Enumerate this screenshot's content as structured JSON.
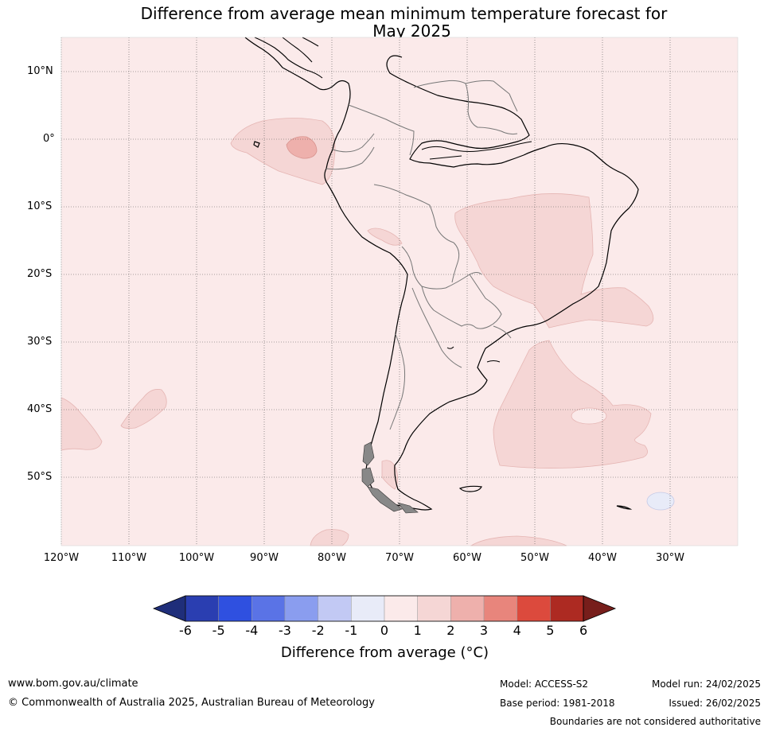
{
  "title": {
    "line1": "Difference from average mean minimum temperature forecast for",
    "line2": "May 2025"
  },
  "map": {
    "latitude_labels": [
      "10°N",
      "0°",
      "10°S",
      "20°S",
      "30°S",
      "40°S",
      "50°S"
    ],
    "longitude_labels": [
      "120°W",
      "110°W",
      "100°W",
      "90°W",
      "80°W",
      "70°W",
      "60°W",
      "50°W",
      "40°W",
      "30°W"
    ],
    "background_color": "#fbeaea",
    "colors": {
      "anomaly_1_2": "#f5d6d5",
      "anomaly_2_3": "#eeb0ac",
      "anomaly_minus1_0": "#e8ebf8"
    }
  },
  "colorbar": {
    "ticks": [
      "-6",
      "-5",
      "-4",
      "-3",
      "-2",
      "-1",
      "0",
      "1",
      "2",
      "3",
      "4",
      "5",
      "6"
    ],
    "colors": [
      "#1f2e7a",
      "#2a3eb1",
      "#2f50e0",
      "#5a73e6",
      "#8a9def",
      "#c2c9f4",
      "#e8ebf8",
      "#fbeaea",
      "#f5d6d5",
      "#eeb0ac",
      "#e8857c",
      "#dc4a3d",
      "#ad2a22",
      "#771e1b"
    ],
    "label": "Difference from average (°C)"
  },
  "footer": {
    "website": "www.bom.gov.au/climate",
    "copyright": "© Commonwealth of Australia 2025, Australian Bureau of Meteorology",
    "model": "Model: ACCESS-S2",
    "base_period": "Base period: 1981-2018",
    "model_run": "Model run: 24/02/2025",
    "issued": "Issued: 26/02/2025",
    "disclaimer": "Boundaries are not considered authoritative"
  }
}
